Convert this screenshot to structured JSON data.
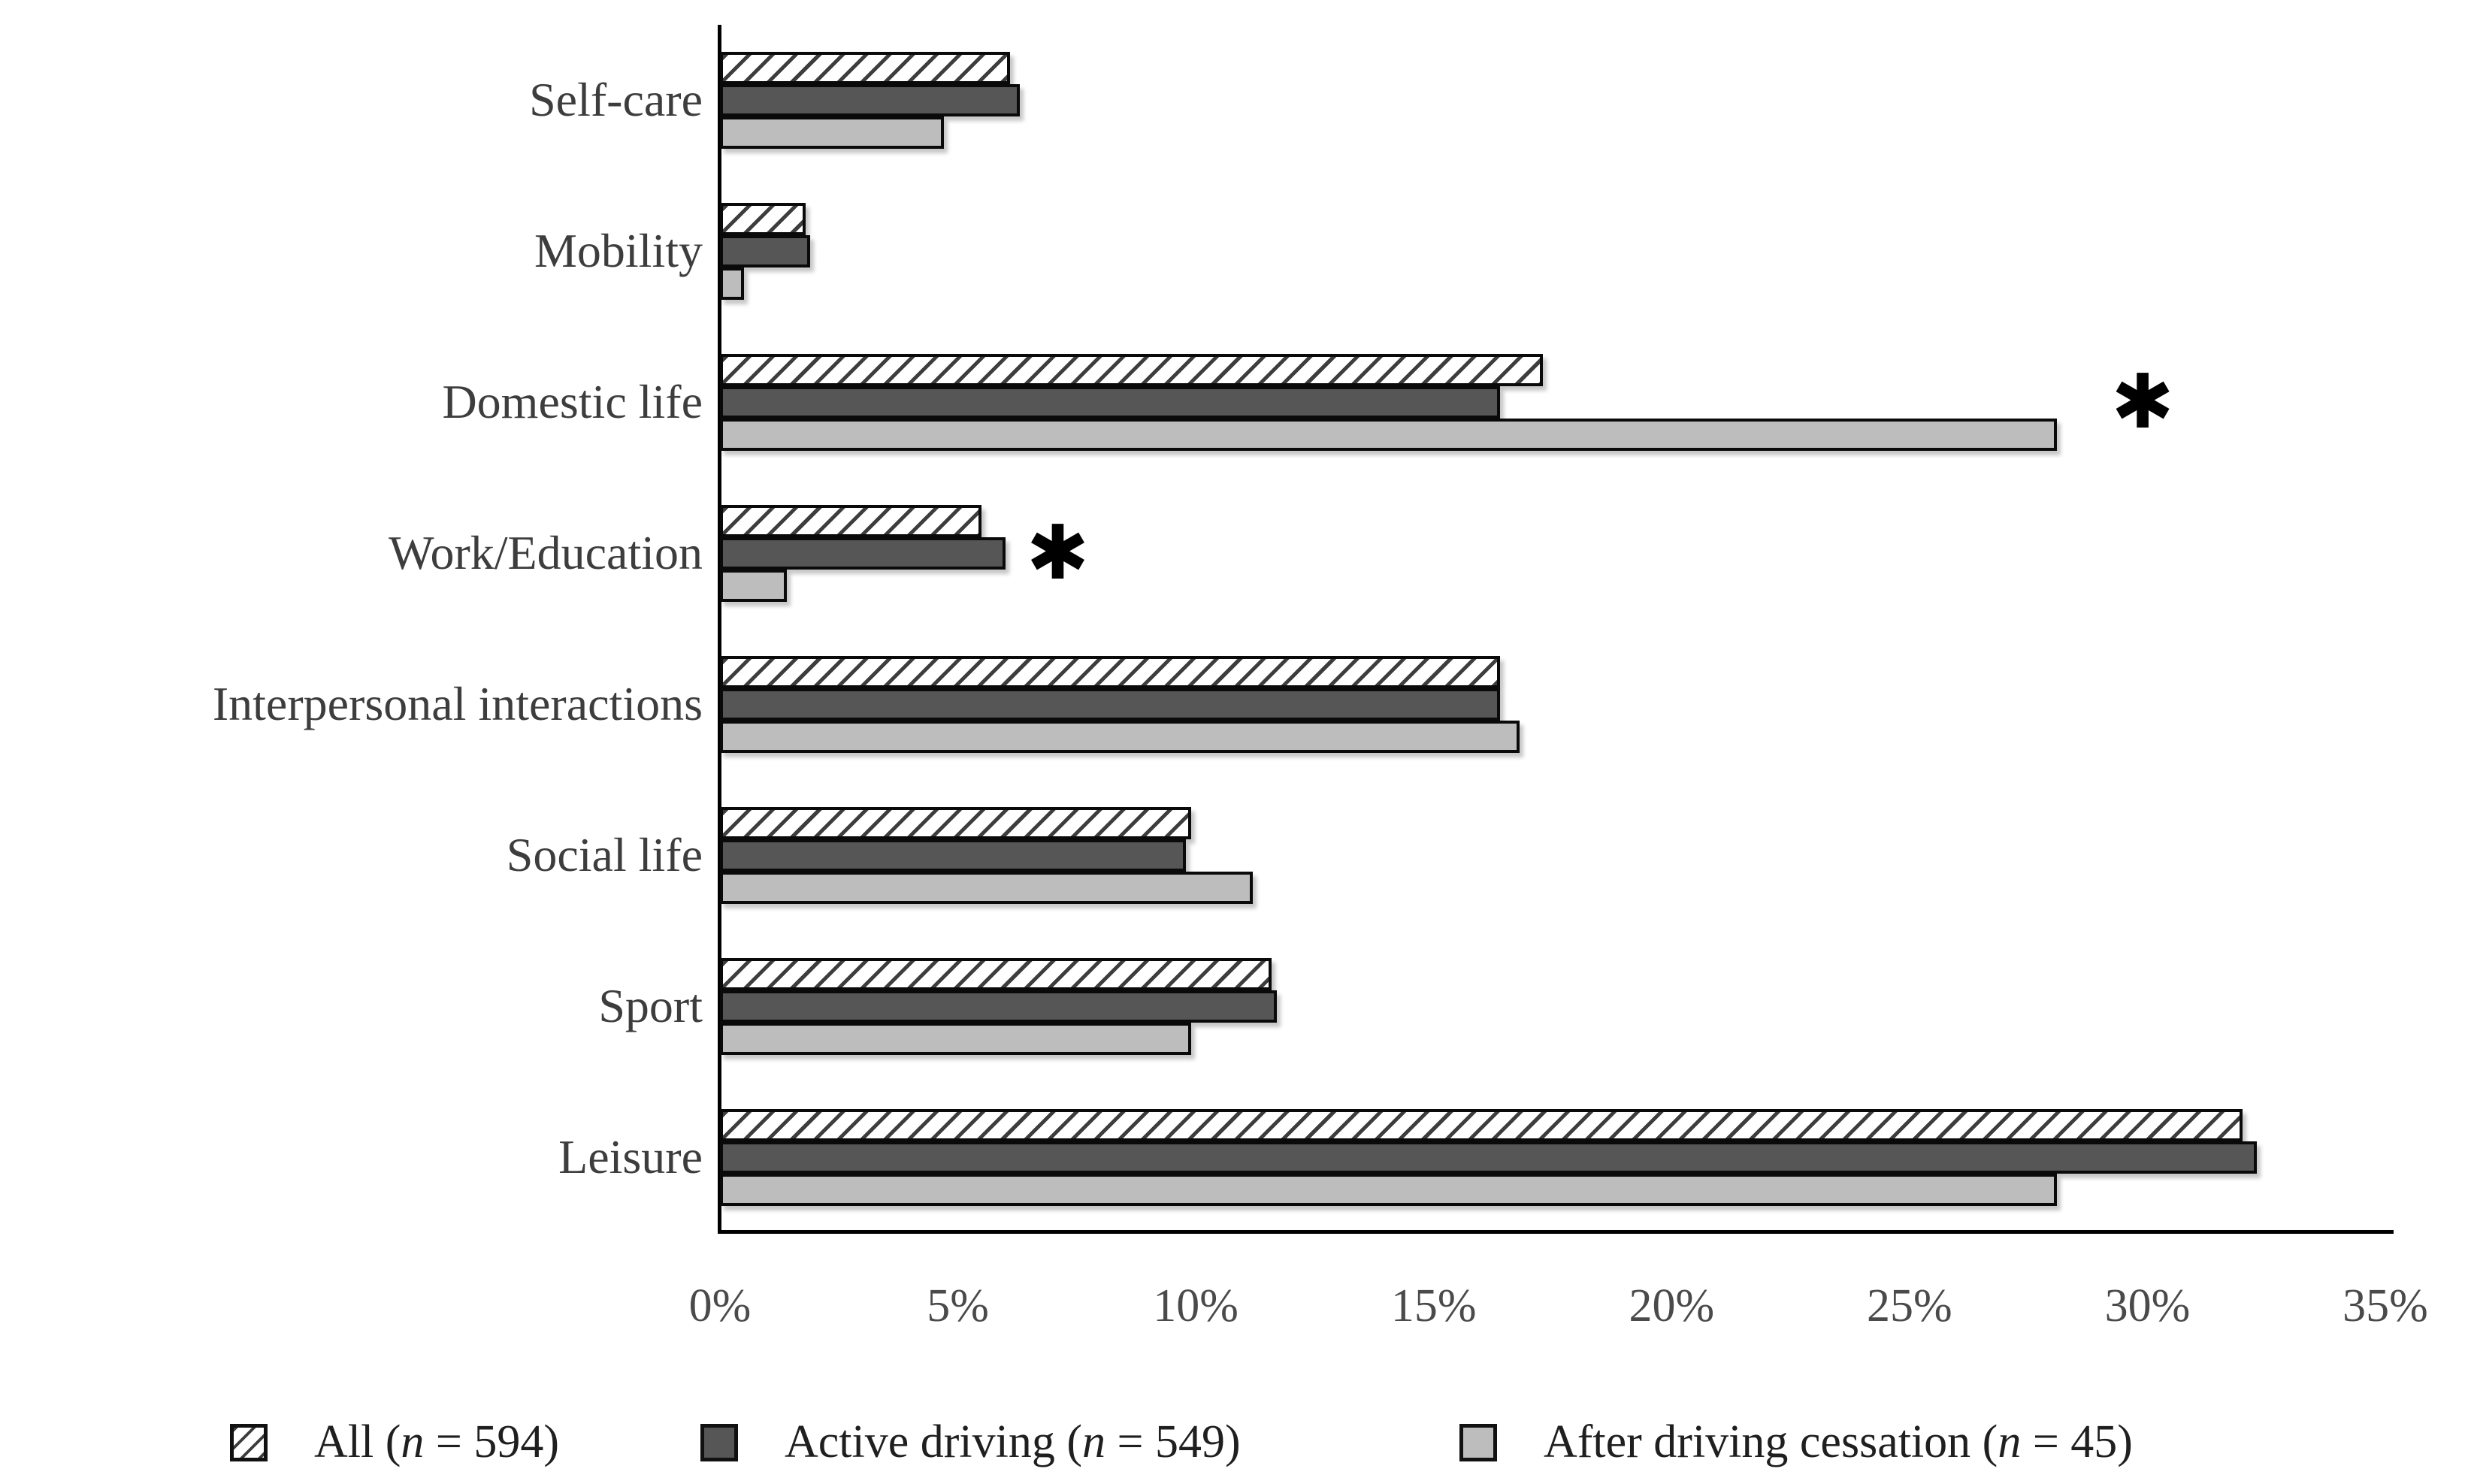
{
  "chart_data": {
    "type": "bar",
    "orientation": "horizontal",
    "title": "",
    "categories": [
      "Self-care",
      "Mobility",
      "Domestic life",
      "Work/Education",
      "Interpersonal interactions",
      "Social life",
      "Sport",
      "Leisure"
    ],
    "series": [
      {
        "key": "all",
        "name": "All (n = 594)",
        "label": {
          "prefix": "All (",
          "italic": "n",
          "suffix": " = 594)"
        },
        "style": "hatched",
        "values": [
          6.1,
          1.8,
          17.3,
          5.5,
          16.4,
          9.9,
          11.6,
          32.0
        ]
      },
      {
        "key": "active-driving",
        "name": "Active driving (n = 549)",
        "label": {
          "prefix": "Active driving (",
          "italic": "n",
          "suffix": " = 549)"
        },
        "style": "dark",
        "values": [
          6.3,
          1.9,
          16.4,
          6.0,
          16.4,
          9.8,
          11.7,
          32.3
        ]
      },
      {
        "key": "after-driving-cessation",
        "name": "After driving cessation (n = 45)",
        "label": {
          "prefix": "After driving cessation (",
          "italic": "n",
          "suffix": " = 45)"
        },
        "style": "light",
        "values": [
          4.7,
          0.5,
          28.1,
          1.4,
          16.8,
          11.2,
          9.9,
          28.1
        ]
      }
    ],
    "x_ticks": [
      "0%",
      "5%",
      "10%",
      "15%",
      "20%",
      "25%",
      "30%",
      "35%"
    ],
    "xlim": [
      0,
      35
    ],
    "grid": false,
    "legend_position": "bottom",
    "annotations": [
      {
        "symbol": "✱",
        "category_index": 2,
        "x_pct": 29.9,
        "v_align": "row-center"
      },
      {
        "symbol": "✱",
        "category_index": 3,
        "x_pct": 7.1,
        "v_align": "series-center",
        "series_index": 1
      }
    ],
    "colors": {
      "dark_fill": "#565656",
      "light_fill": "#BDBDBD",
      "hatch_line": "#3d3d3d",
      "bar_border": "#0a0a0a",
      "axis_line": "#000000",
      "label_text": "#3d3d3d",
      "tick_text": "#4a4a4a",
      "legend_text": "#1f1f1f"
    }
  }
}
